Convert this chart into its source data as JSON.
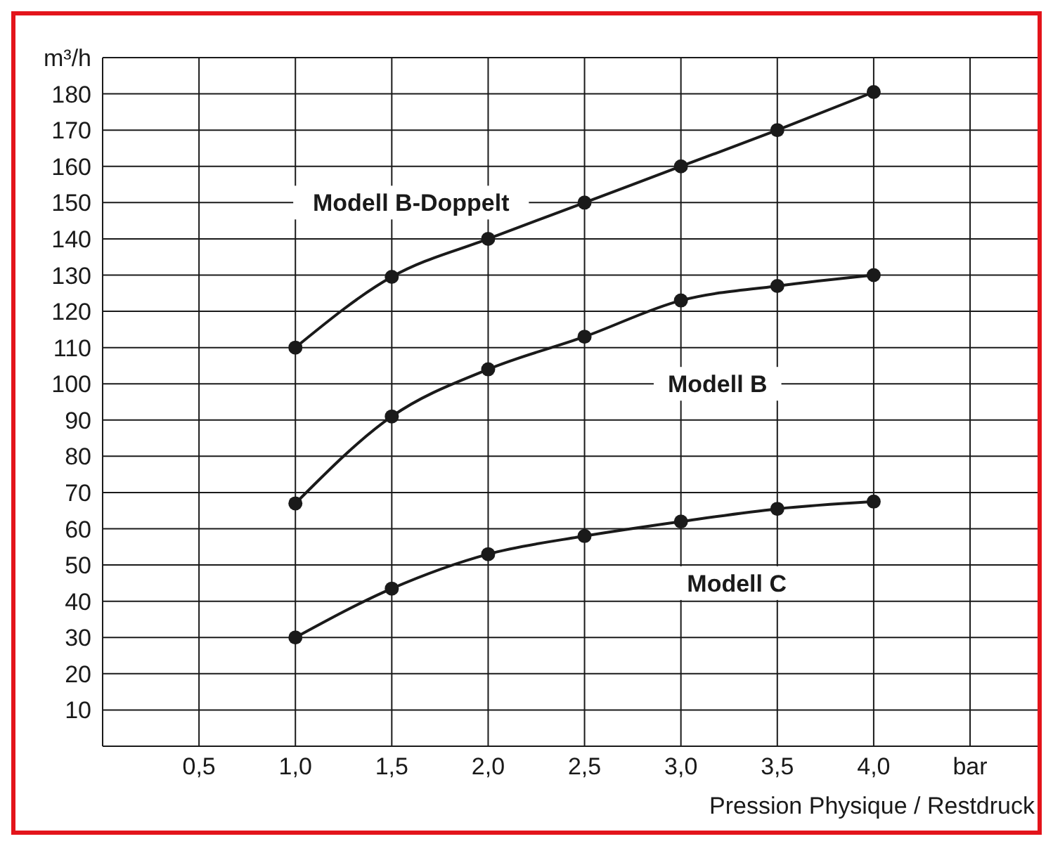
{
  "chart_data": {
    "type": "line",
    "xlabel": "Pression Physique / Restdruck",
    "x": [
      1.0,
      1.5,
      2.0,
      2.5,
      3.0,
      3.5,
      4.0
    ],
    "series": [
      {
        "name": "Modell B-Doppelt",
        "color": "#1a1a1a",
        "values": [
          110,
          129.5,
          140,
          150,
          160,
          170,
          180.5
        ]
      },
      {
        "name": "Modell B",
        "color": "#1a1a1a",
        "values": [
          67,
          91,
          104,
          113,
          123,
          127,
          130
        ]
      },
      {
        "name": "Modell C",
        "color": "#1a1a1a",
        "values": [
          30,
          43.5,
          53,
          58,
          62,
          65.5,
          67.5
        ]
      }
    ],
    "xlim": [
      0,
      4.85
    ],
    "xticks": [
      {
        "value": 0.5,
        "label": "0,5"
      },
      {
        "value": 1.0,
        "label": "1,0"
      },
      {
        "value": 1.5,
        "label": "1,5"
      },
      {
        "value": 2.0,
        "label": "2,0"
      },
      {
        "value": 2.5,
        "label": "2,5"
      },
      {
        "value": 3.0,
        "label": "3,0"
      },
      {
        "value": 3.5,
        "label": "3,5"
      },
      {
        "value": 4.0,
        "label": "4,0"
      },
      {
        "value": 4.5,
        "label": "bar"
      }
    ],
    "ylim": [
      0,
      190
    ],
    "yticks": [
      10,
      20,
      30,
      40,
      50,
      60,
      70,
      80,
      90,
      100,
      110,
      120,
      130,
      140,
      150,
      160,
      170,
      180,
      {
        "value": 190,
        "label": "m³/h"
      }
    ],
    "grid": true,
    "marker": "circle",
    "line_style": "solid"
  }
}
